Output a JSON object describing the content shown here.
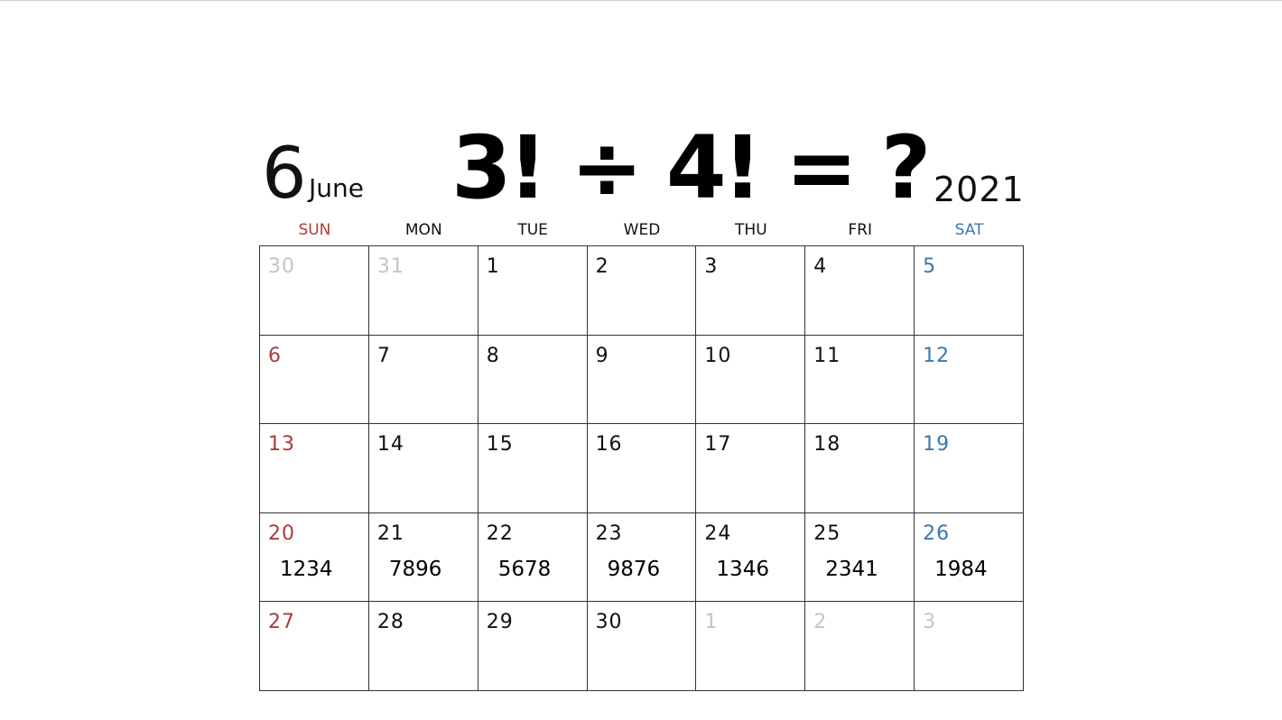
{
  "colors": {
    "sunday": "#b03a3a",
    "saturday": "#3a78b0",
    "weekday": "#111111",
    "other_month": "#c4c4c4"
  },
  "header": {
    "month_number": "6",
    "month_name": "June",
    "puzzle": "3! ÷ 4! = ?",
    "year": "2021"
  },
  "weekdays": [
    "SUN",
    "MON",
    "TUE",
    "WED",
    "THU",
    "FRI",
    "SAT"
  ],
  "weeks": [
    [
      {
        "day": "30",
        "other": true
      },
      {
        "day": "31",
        "other": true
      },
      {
        "day": "1"
      },
      {
        "day": "2"
      },
      {
        "day": "3"
      },
      {
        "day": "4"
      },
      {
        "day": "5"
      }
    ],
    [
      {
        "day": "6"
      },
      {
        "day": "7"
      },
      {
        "day": "8"
      },
      {
        "day": "9"
      },
      {
        "day": "10"
      },
      {
        "day": "11"
      },
      {
        "day": "12"
      }
    ],
    [
      {
        "day": "13"
      },
      {
        "day": "14"
      },
      {
        "day": "15"
      },
      {
        "day": "16"
      },
      {
        "day": "17"
      },
      {
        "day": "18"
      },
      {
        "day": "19"
      }
    ],
    [
      {
        "day": "20",
        "note": "1234"
      },
      {
        "day": "21",
        "note": "7896"
      },
      {
        "day": "22",
        "note": "5678"
      },
      {
        "day": "23",
        "note": "9876"
      },
      {
        "day": "24",
        "note": "1346"
      },
      {
        "day": "25",
        "note": "2341"
      },
      {
        "day": "26",
        "note": "1984"
      }
    ],
    [
      {
        "day": "27"
      },
      {
        "day": "28"
      },
      {
        "day": "29"
      },
      {
        "day": "30"
      },
      {
        "day": "1",
        "other": true
      },
      {
        "day": "2",
        "other": true
      },
      {
        "day": "3",
        "other": true
      }
    ]
  ]
}
